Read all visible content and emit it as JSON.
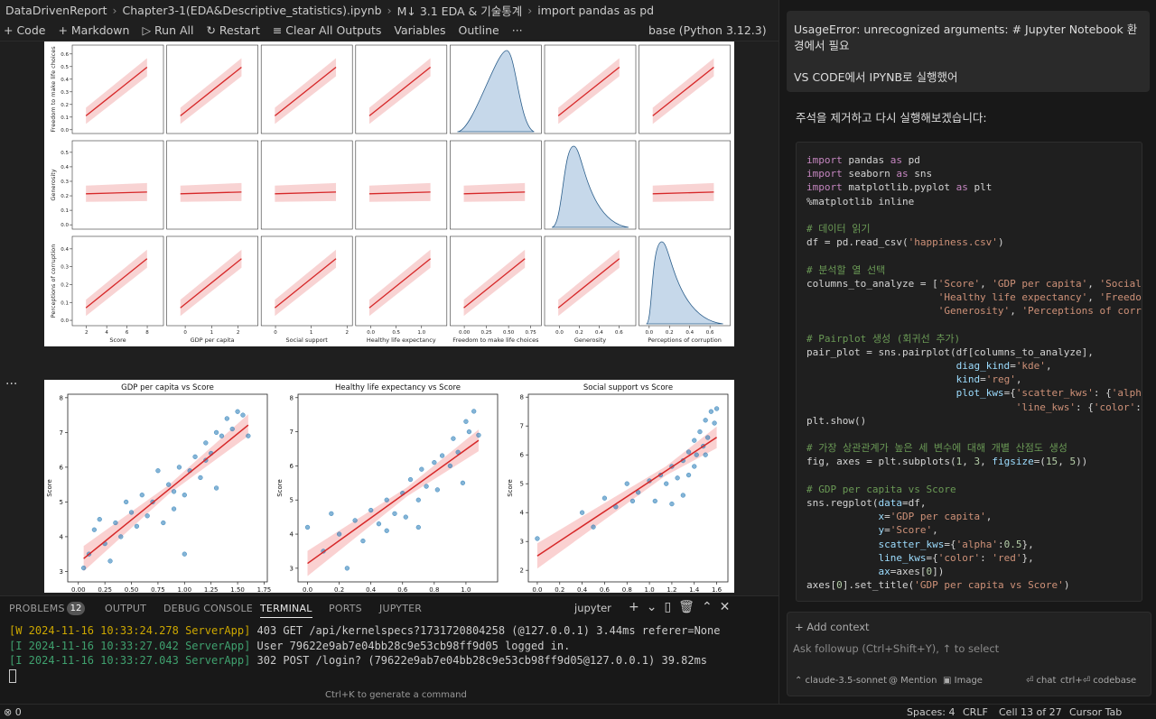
{
  "breadcrumb": [
    "DataDrivenReport",
    "Chapter3-1(EDA&Descriptive_statistics).ipynb",
    "M↓ 3.1 EDA & 기술통계",
    "import pandas as pd"
  ],
  "toolbar": [
    "+ Code",
    "+ Markdown",
    "▷ Run All",
    "↻ Restart",
    "≡ Clear All Outputs",
    "Variables",
    "Outline",
    "···"
  ],
  "kernel": "base (Python 3.12.3)",
  "cell_more": "···",
  "pairplot": {
    "columns": [
      {
        "label": "Score",
        "xlim": [
          0.6,
          9.6
        ],
        "xticks": [
          2,
          4,
          6,
          8
        ]
      },
      {
        "label": "GDP per capita",
        "xlim": [
          -0.7,
          2.75
        ],
        "xticks": [
          0,
          1,
          2
        ]
      },
      {
        "label": "Social support",
        "xlim": [
          -0.4,
          2.15
        ],
        "xticks": [
          0,
          1,
          2
        ]
      },
      {
        "label": "Healthy life expectancy",
        "xlim": [
          -0.3,
          1.5
        ],
        "xticks": [
          {
            "value": 0,
            "label": "0.0"
          },
          {
            "value": 0.5,
            "label": "0.5"
          },
          {
            "value": 1,
            "label": "1.0"
          }
        ]
      },
      {
        "label": "Freedom to make life choices",
        "xlim": [
          -0.16,
          0.87
        ],
        "xticks": [
          {
            "value": 0,
            "label": "0.00"
          },
          {
            "value": 0.25,
            "label": "0.25"
          },
          {
            "value": 0.5,
            "label": "0.50"
          },
          {
            "value": 0.75,
            "label": "0.75"
          }
        ]
      },
      {
        "label": "Generosity",
        "xlim": [
          -0.15,
          0.77
        ],
        "xticks": [
          {
            "value": 0,
            "label": "0.0"
          },
          {
            "value": 0.2,
            "label": "0.2"
          },
          {
            "value": 0.4,
            "label": "0.4"
          },
          {
            "value": 0.6,
            "label": "0.6"
          }
        ]
      },
      {
        "label": "Perceptions of corruption",
        "xlim": [
          -0.1,
          0.8
        ],
        "xticks": [
          {
            "value": 0,
            "label": "0.0"
          },
          {
            "value": 0.2,
            "label": "0.2"
          },
          {
            "value": 0.4,
            "label": "0.4"
          },
          {
            "value": 0.6,
            "label": "0.6"
          }
        ]
      }
    ],
    "rows": [
      {
        "label": "Freedom to make life choices",
        "ylim": [
          -0.03,
          0.67
        ],
        "yticks": [
          {
            "value": 0,
            "label": "0.0"
          },
          {
            "value": 0.1,
            "label": "0.1"
          },
          {
            "value": 0.2,
            "label": "0.2"
          },
          {
            "value": 0.3,
            "label": "0.3"
          },
          {
            "value": 0.4,
            "label": "0.4"
          },
          {
            "value": 0.5,
            "label": "0.5"
          },
          {
            "value": 0.6,
            "label": "0.6"
          }
        ]
      },
      {
        "label": "Generosity",
        "ylim": [
          -0.03,
          0.58
        ],
        "yticks": [
          {
            "value": 0,
            "label": "0.0"
          },
          {
            "value": 0.1,
            "label": "0.1"
          },
          {
            "value": 0.2,
            "label": "0.2"
          },
          {
            "value": 0.3,
            "label": "0.3"
          },
          {
            "value": 0.4,
            "label": "0.4"
          },
          {
            "value": 0.5,
            "label": "0.5"
          }
        ]
      },
      {
        "label": "Perceptions of corruption",
        "ylim": [
          -0.03,
          0.47
        ],
        "yticks": [
          {
            "value": 0,
            "label": "0.0"
          },
          {
            "value": 0.1,
            "label": "0.1"
          },
          {
            "value": 0.2,
            "label": "0.2"
          },
          {
            "value": 0.3,
            "label": "0.3"
          },
          {
            "value": 0.4,
            "label": "0.4"
          }
        ]
      }
    ]
  },
  "chart_data": [
    {
      "type": "scatter",
      "title": "GDP per capita vs Score",
      "ylabel": "Score",
      "color": "#1f77b4",
      "line_color": "#d62728",
      "x": [
        0.05,
        0.1,
        0.2,
        0.25,
        0.3,
        0.35,
        0.4,
        0.5,
        0.55,
        0.6,
        0.65,
        0.7,
        0.75,
        0.8,
        0.85,
        0.9,
        0.95,
        1.0,
        1.0,
        1.05,
        1.1,
        1.15,
        1.2,
        1.25,
        1.3,
        1.35,
        1.4,
        1.45,
        1.5,
        1.55,
        1.6,
        0.15,
        0.45,
        1.3,
        0.9,
        1.2
      ],
      "values": [
        3.1,
        3.5,
        4.5,
        3.8,
        3.3,
        4.4,
        4.0,
        4.7,
        4.3,
        5.2,
        4.6,
        5.0,
        5.9,
        4.4,
        5.5,
        5.3,
        6.0,
        5.2,
        3.5,
        5.9,
        6.3,
        5.7,
        6.2,
        6.4,
        7.0,
        6.9,
        7.4,
        7.1,
        7.6,
        7.5,
        6.9,
        4.2,
        5.0,
        5.4,
        4.8,
        6.7
      ],
      "xlim": [
        -0.1,
        1.78
      ],
      "ylim": [
        2.7,
        8.1
      ],
      "xticks": [
        {
          "value": 0,
          "label": "0.00"
        },
        {
          "value": 0.25,
          "label": "0.25"
        },
        {
          "value": 0.5,
          "label": "0.50"
        },
        {
          "value": 0.75,
          "label": "0.75"
        },
        {
          "value": 1,
          "label": "1.00"
        },
        {
          "value": 1.25,
          "label": "1.25"
        },
        {
          "value": 1.5,
          "label": "1.50"
        },
        {
          "value": 1.75,
          "label": "1.75"
        }
      ],
      "yticks": [
        3,
        4,
        5,
        6,
        7,
        8
      ]
    },
    {
      "type": "scatter",
      "title": "Healthy life expectancy vs Score",
      "ylabel": "Score",
      "color": "#1f77b4",
      "line_color": "#d62728",
      "x": [
        0.0,
        0.1,
        0.15,
        0.2,
        0.3,
        0.35,
        0.4,
        0.45,
        0.5,
        0.5,
        0.55,
        0.6,
        0.62,
        0.65,
        0.7,
        0.72,
        0.75,
        0.8,
        0.82,
        0.85,
        0.9,
        0.92,
        0.95,
        1.0,
        1.02,
        1.05,
        1.08,
        0.98,
        0.7,
        0.25
      ],
      "values": [
        4.2,
        3.5,
        4.6,
        4.0,
        4.4,
        3.8,
        4.7,
        4.3,
        5.0,
        4.1,
        4.6,
        5.2,
        4.5,
        5.6,
        5.0,
        5.9,
        5.4,
        6.1,
        5.3,
        6.3,
        6.0,
        6.8,
        6.4,
        7.3,
        7.0,
        7.6,
        6.9,
        5.5,
        4.2,
        3.0
      ],
      "xlim": [
        -0.06,
        1.2
      ],
      "ylim": [
        2.6,
        8.1
      ],
      "xticks": [
        {
          "value": 0,
          "label": "0.0"
        },
        {
          "value": 0.2,
          "label": "0.2"
        },
        {
          "value": 0.4,
          "label": "0.4"
        },
        {
          "value": 0.6,
          "label": "0.6"
        },
        {
          "value": 0.8,
          "label": "0.8"
        },
        {
          "value": 1,
          "label": "1.0"
        }
      ],
      "yticks": [
        3,
        4,
        5,
        6,
        7,
        8
      ]
    },
    {
      "type": "scatter",
      "title": "Social support vs Score",
      "ylabel": "Score",
      "color": "#1f77b4",
      "line_color": "#d62728",
      "x": [
        0.0,
        0.4,
        0.5,
        0.6,
        0.7,
        0.8,
        0.85,
        0.9,
        1.0,
        1.05,
        1.1,
        1.15,
        1.2,
        1.25,
        1.3,
        1.35,
        1.35,
        1.4,
        1.42,
        1.45,
        1.48,
        1.5,
        1.52,
        1.55,
        1.58,
        1.6,
        1.3,
        1.2,
        1.4,
        1.5
      ],
      "values": [
        3.1,
        4.0,
        3.5,
        4.5,
        4.2,
        5.0,
        4.4,
        4.7,
        5.1,
        4.4,
        5.3,
        5.0,
        5.6,
        5.2,
        5.8,
        6.1,
        5.3,
        6.5,
        6.0,
        6.8,
        6.3,
        7.2,
        6.6,
        7.5,
        7.1,
        7.6,
        4.6,
        4.3,
        5.6,
        6.0
      ],
      "xlim": [
        -0.08,
        1.7
      ],
      "ylim": [
        1.6,
        8.1
      ],
      "xticks": [
        {
          "value": 0,
          "label": "0.0"
        },
        {
          "value": 0.2,
          "label": "0.2"
        },
        {
          "value": 0.4,
          "label": "0.4"
        },
        {
          "value": 0.6,
          "label": "0.6"
        },
        {
          "value": 0.8,
          "label": "0.8"
        },
        {
          "value": 1,
          "label": "1.0"
        },
        {
          "value": 1.2,
          "label": "1.2"
        },
        {
          "value": 1.4,
          "label": "1.4"
        },
        {
          "value": 1.6,
          "label": "1.6"
        }
      ],
      "yticks": [
        2,
        3,
        4,
        5,
        6,
        7,
        8
      ]
    }
  ],
  "panel": {
    "tabs": [
      "PROBLEMS",
      "OUTPUT",
      "DEBUG CONSOLE",
      "TERMINAL",
      "PORTS",
      "JUPYTER"
    ],
    "problems": "12",
    "terminal_name": "jupyter",
    "terminal": [
      {
        "level": "W",
        "prefix": "[W 2024-11-16 10:33:24.278 ServerApp]",
        "text": " 403 GET /api/kernelspecs?1731720804258 (@127.0.0.1) 3.44ms referer=None"
      },
      {
        "level": "I",
        "prefix": "[I 2024-11-16 10:33:27.042 ServerApp]",
        "text": " User 79622e9ab7e04bb28c9e53cb98ff9d05 logged in."
      },
      {
        "level": "I",
        "prefix": "[I 2024-11-16 10:33:27.043 ServerApp]",
        "text": " 302 POST /login? (79622e9ab7e04bb28c9e53cb98ff9d05@127.0.0.1) 39.82ms"
      }
    ],
    "hint": "Ctrl+K to generate a command"
  },
  "status": {
    "left": "⊗ 0",
    "right": [
      "Spaces: 4",
      "CRLF",
      "Cell 13 of 27",
      "Cursor Tab"
    ]
  },
  "chat": {
    "user_message": [
      "UsageError: unrecognized arguments: # Jupyter Notebook 환경에서 필요",
      "VS CODE에서 IPYNB로 실행했어"
    ],
    "response": "주석을 제거하고 다시 실행해보겠습니다:",
    "code": "import pandas as pd\nimport seaborn as sns\nimport matplotlib.pyplot as plt\n%matplotlib inline\n\n# 데이터 읽기\ndf = pd.read_csv('happiness.csv')\n\n# 분석할 열 선택\ncolumns_to_analyze = ['Score', 'GDP per capita', 'Social\n                      'Healthy life expectancy', 'Freedom\n                      'Generosity', 'Perceptions of corrup\n\n# Pairplot 생성 (회귀선 추가)\npair_plot = sns.pairplot(df[columns_to_analyze],\n                         diag_kind='kde',\n                         kind='reg',\n                         plot_kws={'scatter_kws': {'alpha'\n                                   'line_kws': {'color': 're\nplt.show()\n\n# 가장 상관관계가 높은 세 변수에 대해 개별 산점도 생성\nfig, axes = plt.subplots(1, 3, figsize=(15, 5))\n\n# GDP per capita vs Score\nsns.regplot(data=df,\n            x='GDP per capita',\n            y='Score',\n            scatter_kws={'alpha':0.5},\n            line_kws={'color': 'red'},\n            ax=axes[0])\naxes[0].set_title('GDP per capita vs Score')",
    "add_context": "+ Add context",
    "placeholder": "Ask followup (Ctrl+Shift+Y), ↑ to select",
    "footer": [
      "⌃ claude-3.5-sonnet",
      "@ Mention",
      "▣ Image",
      "⏎ chat",
      "ctrl+⏎ codebase"
    ]
  }
}
